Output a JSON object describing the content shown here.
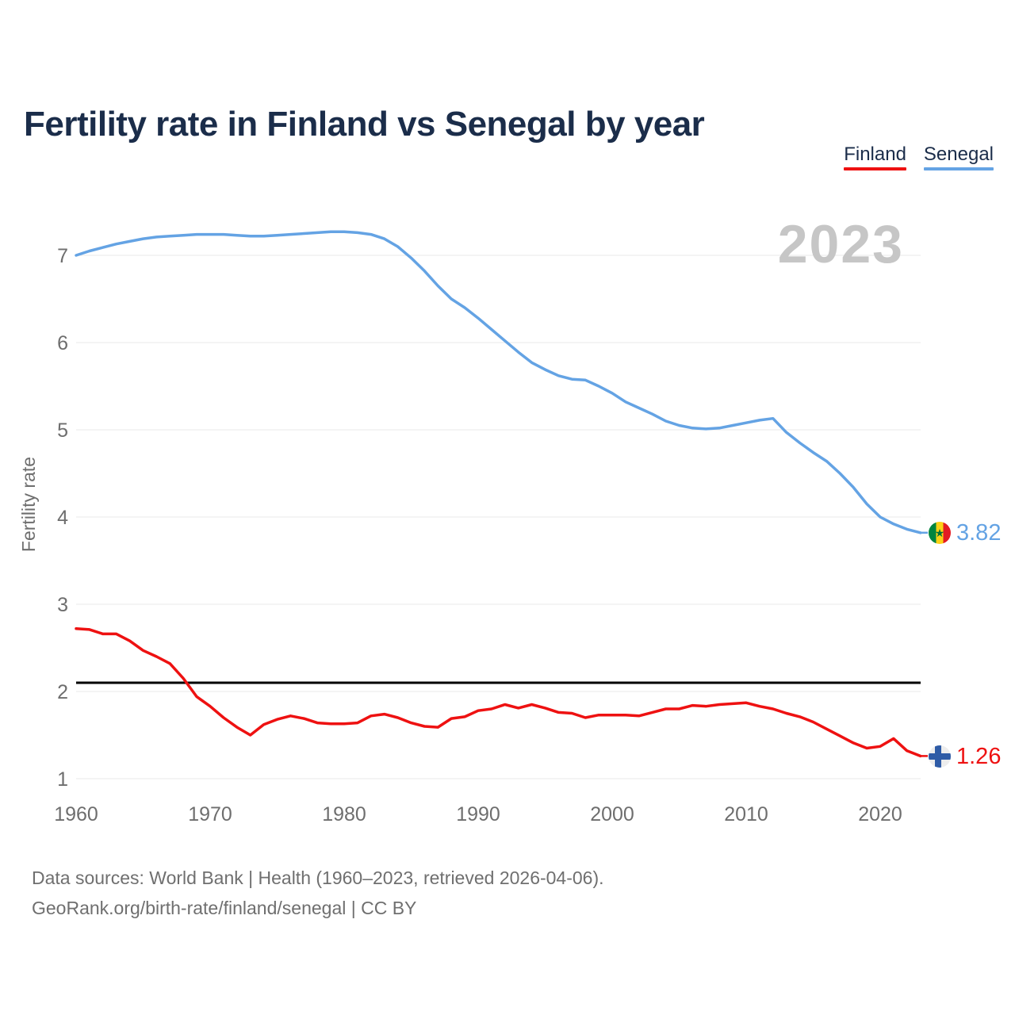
{
  "header": {
    "title": "Fertility rate in Finland vs Senegal by year"
  },
  "watermark": {
    "text": "2023"
  },
  "footer": {
    "line1": "Data sources: World Bank | Health (1960–2023, retrieved 2026-04-06).",
    "line2": "GeoRank.org/birth-rate/finland/senegal | CC BY"
  },
  "colors": {
    "finland": "#ee1111",
    "senegal": "#64a3e4",
    "title_text": "#1b2d4a",
    "axis_text": "#6e6e6e",
    "gridline": "#e9e9e9",
    "watermark": "#c6c6c6",
    "reference_line": "#000000"
  },
  "icons": {
    "senegal_flag": "senegal-flag-icon",
    "finland_flag": "finland-flag-icon",
    "senegal_star": "★"
  },
  "chart_data": {
    "type": "line",
    "title": "Fertility rate in Finland vs Senegal by year",
    "xlabel": "",
    "ylabel": "Fertility rate",
    "x_start": 1960,
    "x_end": 2023,
    "x_ticks": [
      1960,
      1970,
      1980,
      1990,
      2000,
      2010,
      2020
    ],
    "y_ticks": [
      1,
      2,
      3,
      4,
      5,
      6,
      7
    ],
    "ylim": [
      1,
      7.3
    ],
    "grid": "horizontal",
    "legend_position": "top-right",
    "reference_line": {
      "value": 2.1,
      "color": "#000000"
    },
    "series": [
      {
        "name": "Finland",
        "color": "#ee1111",
        "end_label": "1.26",
        "values": [
          2.72,
          2.71,
          2.66,
          2.66,
          2.58,
          2.47,
          2.4,
          2.32,
          2.15,
          1.94,
          1.83,
          1.7,
          1.59,
          1.5,
          1.62,
          1.68,
          1.72,
          1.69,
          1.64,
          1.63,
          1.63,
          1.64,
          1.72,
          1.74,
          1.7,
          1.64,
          1.6,
          1.59,
          1.69,
          1.71,
          1.78,
          1.8,
          1.85,
          1.81,
          1.85,
          1.81,
          1.76,
          1.75,
          1.7,
          1.73,
          1.73,
          1.73,
          1.72,
          1.76,
          1.8,
          1.8,
          1.84,
          1.83,
          1.85,
          1.86,
          1.87,
          1.83,
          1.8,
          1.75,
          1.71,
          1.65,
          1.57,
          1.49,
          1.41,
          1.35,
          1.37,
          1.46,
          1.32,
          1.26
        ]
      },
      {
        "name": "Senegal",
        "color": "#64a3e4",
        "end_label": "3.82",
        "values": [
          7.0,
          7.05,
          7.09,
          7.13,
          7.16,
          7.19,
          7.21,
          7.22,
          7.23,
          7.24,
          7.24,
          7.24,
          7.23,
          7.22,
          7.22,
          7.23,
          7.24,
          7.25,
          7.26,
          7.27,
          7.27,
          7.26,
          7.24,
          7.19,
          7.1,
          6.97,
          6.82,
          6.65,
          6.5,
          6.4,
          6.28,
          6.15,
          6.02,
          5.89,
          5.77,
          5.69,
          5.62,
          5.58,
          5.57,
          5.5,
          5.42,
          5.32,
          5.25,
          5.18,
          5.1,
          5.05,
          5.02,
          5.01,
          5.02,
          5.05,
          5.08,
          5.11,
          5.13,
          4.97,
          4.85,
          4.74,
          4.64,
          4.5,
          4.34,
          4.15,
          4.0,
          3.92,
          3.86,
          3.82
        ]
      }
    ]
  }
}
